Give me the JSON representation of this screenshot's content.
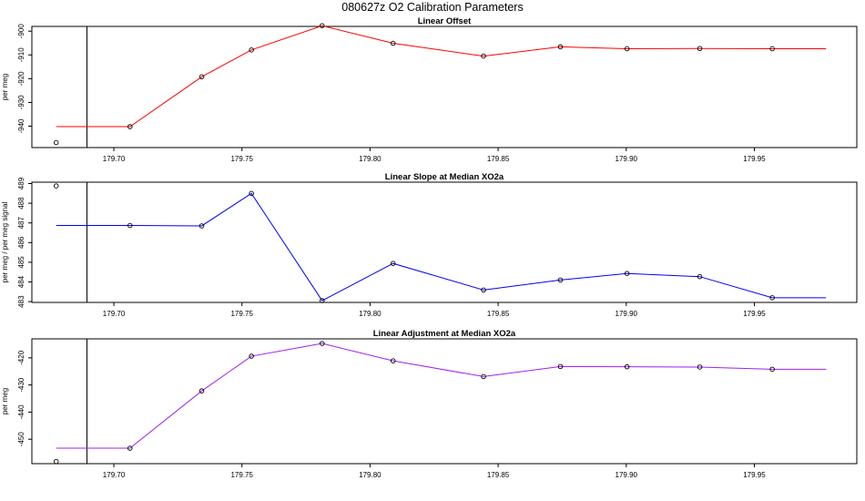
{
  "title": "080627z   O2 Calibration Parameters",
  "chart_data": [
    {
      "type": "line",
      "title": "Linear Offset",
      "ylabel": "per meg",
      "xlim": [
        179.668,
        179.99
      ],
      "ylim": [
        -949,
        -898
      ],
      "xticks": [
        179.7,
        179.75,
        179.8,
        179.85,
        179.9,
        179.95
      ],
      "xtick_labels": [
        "179.70",
        "179.75",
        "179.80",
        "179.85",
        "179.90",
        "179.95"
      ],
      "yticks": [
        -940,
        -930,
        -920,
        -910,
        -900
      ],
      "ytick_labels": [
        "-940",
        "-930",
        "-920",
        "-910",
        "-900"
      ],
      "vline_x": 179.6895,
      "line_color": "#ff0000",
      "points_x": [
        179.6775,
        179.7063,
        179.7343,
        179.7537,
        179.7813,
        179.809,
        179.8443,
        179.8743,
        179.9003,
        179.9287,
        179.957
      ],
      "points_y": [
        -946.9,
        -940.2,
        -919.2,
        -907.9,
        -897.7,
        -905.1,
        -910.5,
        -906.6,
        -907.4,
        -907.3,
        -907.4
      ],
      "line_x": [
        179.6775,
        179.7063,
        179.7343,
        179.7537,
        179.7813,
        179.809,
        179.8443,
        179.8743,
        179.9003,
        179.9287,
        179.957,
        179.978
      ],
      "line_y": [
        -940.2,
        -940.2,
        -919.2,
        -907.9,
        -897.7,
        -905.1,
        -910.5,
        -906.6,
        -907.4,
        -907.3,
        -907.4,
        -907.4
      ]
    },
    {
      "type": "line",
      "title": "Linear Slope at Median XO2a",
      "ylabel": "per meg / per meg signal",
      "xlim": [
        179.668,
        179.99
      ],
      "ylim": [
        482.96,
        489.07
      ],
      "xticks": [
        179.7,
        179.75,
        179.8,
        179.85,
        179.9,
        179.95
      ],
      "xtick_labels": [
        "179.70",
        "179.75",
        "179.80",
        "179.85",
        "179.90",
        "179.95"
      ],
      "yticks": [
        483,
        484,
        485,
        486,
        487,
        488,
        489
      ],
      "ytick_labels": [
        "483",
        "484",
        "485",
        "486",
        "487",
        "488",
        "489"
      ],
      "vline_x": 179.6895,
      "line_color": "#0000ff",
      "points_x": [
        179.6775,
        179.7063,
        179.7343,
        179.7537,
        179.7813,
        179.809,
        179.8443,
        179.8743,
        179.9003,
        179.9287,
        179.957
      ],
      "points_y": [
        488.88,
        486.87,
        486.85,
        488.5,
        483.05,
        484.94,
        483.59,
        484.1,
        484.43,
        484.27,
        483.2
      ],
      "line_x": [
        179.6775,
        179.7063,
        179.7343,
        179.7537,
        179.7813,
        179.809,
        179.8443,
        179.8743,
        179.9003,
        179.9287,
        179.957,
        179.978
      ],
      "line_y": [
        486.87,
        486.87,
        486.85,
        488.5,
        483.05,
        484.94,
        483.59,
        484.1,
        484.43,
        484.27,
        483.2,
        483.2
      ]
    },
    {
      "type": "line",
      "title": "Linear Adjustment at Median XO2a",
      "ylabel": "per meg",
      "xlim": [
        179.668,
        179.99
      ],
      "ylim": [
        -459,
        -413
      ],
      "xticks": [
        179.7,
        179.75,
        179.8,
        179.85,
        179.9,
        179.95
      ],
      "xtick_labels": [
        "179.70",
        "179.75",
        "179.80",
        "179.85",
        "179.90",
        "179.95"
      ],
      "yticks": [
        -450,
        -440,
        -430,
        -420
      ],
      "ytick_labels": [
        "-450",
        "-440",
        "-430",
        "-420"
      ],
      "vline_x": 179.6895,
      "line_color": "#a020f0",
      "points_x": [
        179.6775,
        179.7063,
        179.7343,
        179.7537,
        179.7813,
        179.809,
        179.8443,
        179.8743,
        179.9003,
        179.9287,
        179.957
      ],
      "points_y": [
        -458.2,
        -453.3,
        -432.2,
        -419.4,
        -414.7,
        -421.1,
        -426.9,
        -423.2,
        -423.3,
        -423.4,
        -424.2
      ],
      "line_x": [
        179.6775,
        179.7063,
        179.7343,
        179.7537,
        179.7813,
        179.809,
        179.8443,
        179.8743,
        179.9003,
        179.9287,
        179.957,
        179.978
      ],
      "line_y": [
        -453.3,
        -453.3,
        -432.2,
        -419.4,
        -414.7,
        -421.1,
        -426.9,
        -423.2,
        -423.3,
        -423.4,
        -424.2,
        -424.2
      ]
    }
  ]
}
